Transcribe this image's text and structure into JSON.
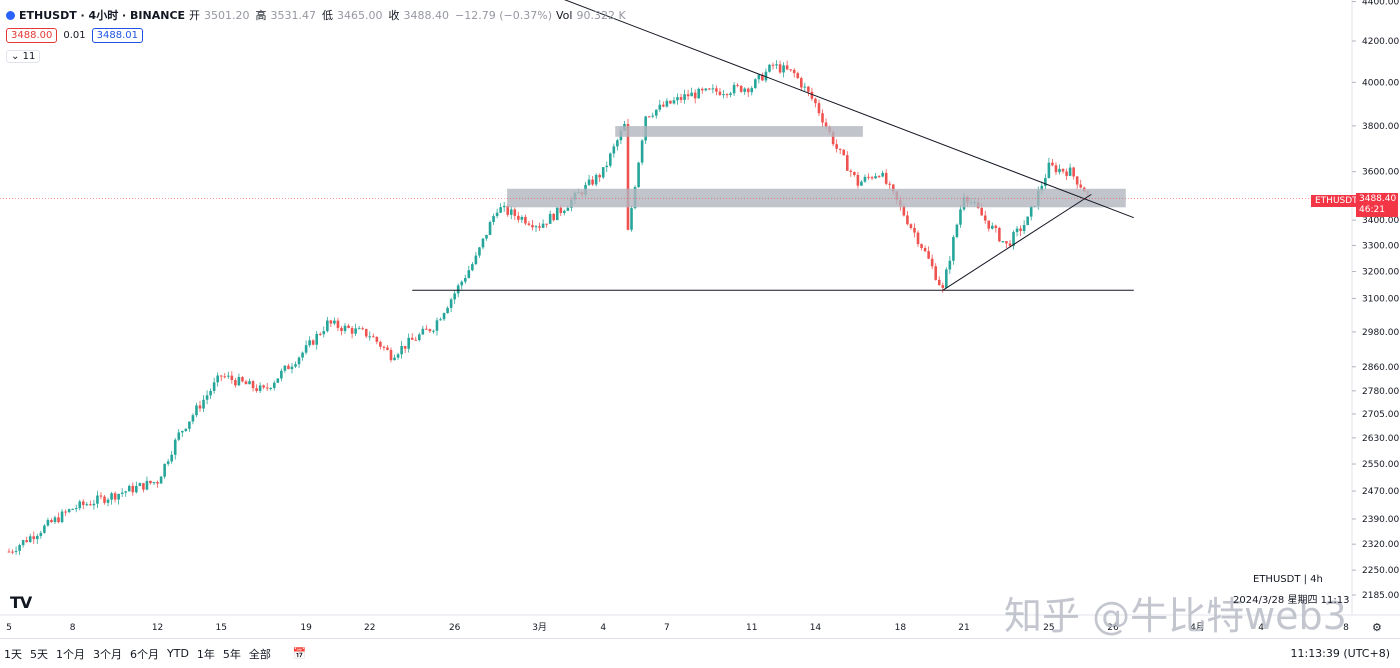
{
  "header": {
    "symbol": "ETHUSDT · 4小时 · BINANCE",
    "open_label": "开",
    "open": "3501.20",
    "high_label": "高",
    "high": "3531.47",
    "low_label": "低",
    "low": "3465.00",
    "close_label": "收",
    "close": "3488.40",
    "change": "−12.79 (−0.37%)",
    "vol_label": "Vol",
    "vol": "90.322 K"
  },
  "quote": {
    "sell": "3488.00",
    "spread": "0.01",
    "buy": "3488.01"
  },
  "indicator_toggle": "11",
  "price_axis": {
    "ticks": [
      "4400.00",
      "4200.00",
      "4000.00",
      "3800.00",
      "3600.00",
      "3400.00",
      "3300.00",
      "3200.00",
      "3100.00",
      "2980.00",
      "2860.00",
      "2780.00",
      "2705.00",
      "2630.00",
      "2550.00",
      "2470.00",
      "2390.00",
      "2320.00",
      "2250.00",
      "2185.00"
    ],
    "last_price": "3488.40",
    "countdown": "46:21",
    "symbol_tag": "ETHUSDT"
  },
  "time_axis": {
    "ticks": [
      "5",
      "8",
      "12",
      "15",
      "19",
      "22",
      "26",
      "3月",
      "4",
      "7",
      "11",
      "14",
      "18",
      "21",
      "25",
      "26",
      "4月",
      "4",
      "8"
    ]
  },
  "watermark": {
    "symbol": "ETHUSDT | 4h",
    "date": "2024/3/28 星期四 11:13",
    "source": "知乎 @牛比特web3"
  },
  "bottom": {
    "ranges": [
      "1天",
      "5天",
      "1个月",
      "3个月",
      "6个月",
      "YTD",
      "1年",
      "5年",
      "全部"
    ],
    "clock": "11:13:39 (UTC+8)"
  },
  "colors": {
    "up": "#26a69a",
    "down": "#ef5350",
    "zone": "#b2b5be",
    "line": "#131722"
  },
  "chart_data": {
    "type": "candlestick",
    "title": "ETHUSDT · 4小时 · BINANCE",
    "ylim": [
      2150,
      4450
    ],
    "yscale": "log",
    "trendlines": [
      {
        "name": "descending resistance",
        "from": [
          "2024-03-01",
          4460
        ],
        "to": [
          "2024-03-29",
          3410
        ]
      },
      {
        "name": "ascending support",
        "from": [
          "2024-03-20",
          3130
        ],
        "to": [
          "2024-03-27",
          3505
        ]
      },
      {
        "name": "horizontal support",
        "from": [
          "2024-02-24",
          3130
        ],
        "to": [
          "2024-03-29",
          3130
        ]
      }
    ],
    "zones": [
      {
        "name": "resistance zone",
        "low": 3760,
        "high": 3790
      },
      {
        "name": "support zone",
        "low": 3460,
        "high": 3520
      }
    ],
    "keypoints": [
      [
        "02-05",
        2300
      ],
      [
        "02-08",
        2420
      ],
      [
        "02-12",
        2500
      ],
      [
        "02-13",
        2640
      ],
      [
        "02-15",
        2830
      ],
      [
        "02-17",
        2780
      ],
      [
        "02-19",
        2920
      ],
      [
        "02-20",
        3010
      ],
      [
        "02-22",
        2970
      ],
      [
        "02-23",
        2900
      ],
      [
        "02-25",
        3000
      ],
      [
        "02-26",
        3120
      ],
      [
        "02-27",
        3250
      ],
      [
        "02-28",
        3450
      ],
      [
        "03-01",
        3380
      ],
      [
        "03-02",
        3440
      ],
      [
        "03-04",
        3600
      ],
      [
        "03-05",
        3800
      ],
      [
        "03-05",
        3250
      ],
      [
        "03-06",
        3850
      ],
      [
        "03-08",
        3940
      ],
      [
        "03-11",
        3980
      ],
      [
        "03-12",
        4080
      ],
      [
        "03-13",
        4040
      ],
      [
        "03-14",
        3900
      ],
      [
        "03-15",
        3700
      ],
      [
        "03-16",
        3550
      ],
      [
        "03-17",
        3600
      ],
      [
        "03-18",
        3450
      ],
      [
        "03-19",
        3300
      ],
      [
        "03-20",
        3130
      ],
      [
        "03-21",
        3510
      ],
      [
        "03-22",
        3400
      ],
      [
        "03-23",
        3300
      ],
      [
        "03-24",
        3400
      ],
      [
        "03-25",
        3620
      ],
      [
        "03-26",
        3600
      ],
      [
        "03-27",
        3488
      ]
    ]
  }
}
